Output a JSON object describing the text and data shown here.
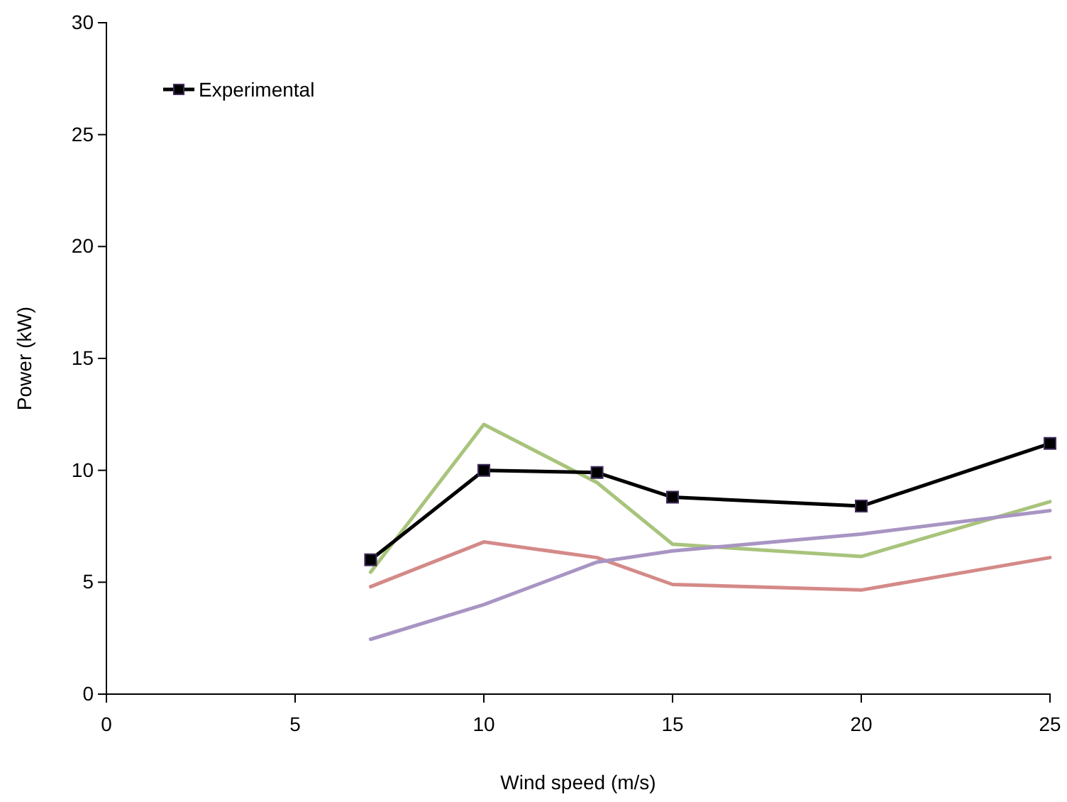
{
  "chart_data": {
    "type": "line",
    "xlabel": "Wind speed (m/s)",
    "ylabel": "Power (kW)",
    "x": [
      7,
      10,
      13,
      15,
      20,
      25
    ],
    "xlim": [
      0,
      25
    ],
    "xticks": [
      0,
      5,
      10,
      15,
      20,
      25
    ],
    "ylim": [
      0,
      30
    ],
    "yticks": [
      0,
      5,
      10,
      15,
      20,
      25,
      30
    ],
    "grid": false,
    "legend": "top left",
    "series": [
      {
        "color": "#a8c47c",
        "marker": "none",
        "values": [
          5.45,
          12.05,
          9.45,
          6.7,
          6.15,
          8.6
        ]
      },
      {
        "color": "#d48a88",
        "marker": "none",
        "values": [
          4.8,
          6.8,
          6.1,
          4.9,
          4.65,
          6.1
        ]
      },
      {
        "color": "#a895c3",
        "marker": "none",
        "values": [
          2.45,
          4.0,
          5.9,
          6.4,
          7.15,
          8.2
        ]
      },
      {
        "name": "Experimental",
        "color": "#000000",
        "marker": "square",
        "values": [
          6.0,
          10.0,
          9.9,
          8.8,
          8.4,
          11.2
        ]
      }
    ]
  }
}
